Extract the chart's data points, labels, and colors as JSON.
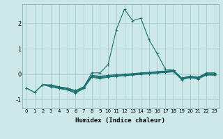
{
  "xlabel": "Humidex (Indice chaleur)",
  "ylabel": "",
  "background_color": "#cce8e8",
  "grid_color": "#aacccc",
  "line_color": "#1a7070",
  "xlim": [
    -0.5,
    23.5
  ],
  "ylim": [
    -1.35,
    2.75
  ],
  "xticks": [
    0,
    1,
    2,
    3,
    4,
    5,
    6,
    7,
    8,
    9,
    10,
    11,
    12,
    13,
    14,
    15,
    16,
    17,
    18,
    19,
    20,
    21,
    22,
    23
  ],
  "yticks": [
    -1,
    0,
    1,
    2
  ],
  "series1": [
    [
      0,
      -0.55
    ],
    [
      1,
      -0.72
    ],
    [
      2,
      -0.42
    ],
    [
      3,
      -0.45
    ],
    [
      4,
      -0.52
    ],
    [
      5,
      -0.55
    ],
    [
      6,
      -0.65
    ],
    [
      7,
      -0.52
    ],
    [
      8,
      0.05
    ],
    [
      9,
      0.05
    ],
    [
      10,
      0.38
    ],
    [
      11,
      1.75
    ],
    [
      12,
      2.55
    ],
    [
      13,
      2.1
    ],
    [
      14,
      2.2
    ],
    [
      15,
      1.35
    ],
    [
      16,
      0.8
    ],
    [
      17,
      0.2
    ],
    [
      18,
      0.15
    ],
    [
      19,
      -0.18
    ],
    [
      20,
      -0.08
    ],
    [
      21,
      -0.14
    ],
    [
      22,
      0.05
    ],
    [
      23,
      0.05
    ]
  ],
  "series2": [
    [
      0,
      -0.55
    ],
    [
      1,
      -0.72
    ],
    [
      2,
      -0.42
    ],
    [
      3,
      -0.42
    ],
    [
      4,
      -0.5
    ],
    [
      5,
      -0.55
    ],
    [
      6,
      -0.65
    ],
    [
      7,
      -0.5
    ],
    [
      8,
      -0.05
    ],
    [
      9,
      -0.08
    ],
    [
      10,
      -0.05
    ],
    [
      11,
      -0.02
    ],
    [
      12,
      0.0
    ],
    [
      13,
      0.02
    ],
    [
      14,
      0.05
    ],
    [
      15,
      0.07
    ],
    [
      16,
      0.1
    ],
    [
      17,
      0.12
    ],
    [
      18,
      0.15
    ],
    [
      19,
      -0.15
    ],
    [
      20,
      -0.08
    ],
    [
      21,
      -0.12
    ],
    [
      22,
      0.02
    ],
    [
      23,
      0.02
    ]
  ],
  "series3": [
    [
      2,
      -0.42
    ],
    [
      3,
      -0.45
    ],
    [
      4,
      -0.53
    ],
    [
      5,
      -0.57
    ],
    [
      6,
      -0.68
    ],
    [
      7,
      -0.53
    ],
    [
      8,
      -0.08
    ],
    [
      9,
      -0.12
    ],
    [
      10,
      -0.08
    ],
    [
      11,
      -0.05
    ],
    [
      12,
      -0.02
    ],
    [
      13,
      0.0
    ],
    [
      14,
      0.03
    ],
    [
      15,
      0.05
    ],
    [
      16,
      0.08
    ],
    [
      17,
      0.1
    ],
    [
      18,
      0.13
    ],
    [
      19,
      -0.18
    ],
    [
      20,
      -0.1
    ],
    [
      21,
      -0.15
    ],
    [
      22,
      0.0
    ],
    [
      23,
      0.0
    ]
  ],
  "series4": [
    [
      2,
      -0.42
    ],
    [
      3,
      -0.47
    ],
    [
      4,
      -0.55
    ],
    [
      5,
      -0.6
    ],
    [
      6,
      -0.72
    ],
    [
      7,
      -0.55
    ],
    [
      8,
      -0.1
    ],
    [
      9,
      -0.15
    ],
    [
      10,
      -0.1
    ],
    [
      11,
      -0.07
    ],
    [
      12,
      -0.04
    ],
    [
      13,
      -0.02
    ],
    [
      14,
      0.01
    ],
    [
      15,
      0.03
    ],
    [
      16,
      0.06
    ],
    [
      17,
      0.08
    ],
    [
      18,
      0.11
    ],
    [
      19,
      -0.2
    ],
    [
      20,
      -0.12
    ],
    [
      21,
      -0.17
    ],
    [
      22,
      -0.02
    ],
    [
      23,
      -0.02
    ]
  ],
  "series5": [
    [
      2,
      -0.42
    ],
    [
      3,
      -0.5
    ],
    [
      4,
      -0.57
    ],
    [
      5,
      -0.62
    ],
    [
      6,
      -0.75
    ],
    [
      7,
      -0.57
    ],
    [
      8,
      -0.12
    ],
    [
      9,
      -0.18
    ],
    [
      10,
      -0.12
    ],
    [
      11,
      -0.09
    ],
    [
      12,
      -0.06
    ],
    [
      13,
      -0.04
    ],
    [
      14,
      -0.01
    ],
    [
      15,
      0.01
    ],
    [
      16,
      0.04
    ],
    [
      17,
      0.06
    ],
    [
      18,
      0.09
    ],
    [
      19,
      -0.22
    ],
    [
      20,
      -0.14
    ],
    [
      21,
      -0.19
    ],
    [
      22,
      -0.04
    ],
    [
      23,
      -0.04
    ]
  ]
}
